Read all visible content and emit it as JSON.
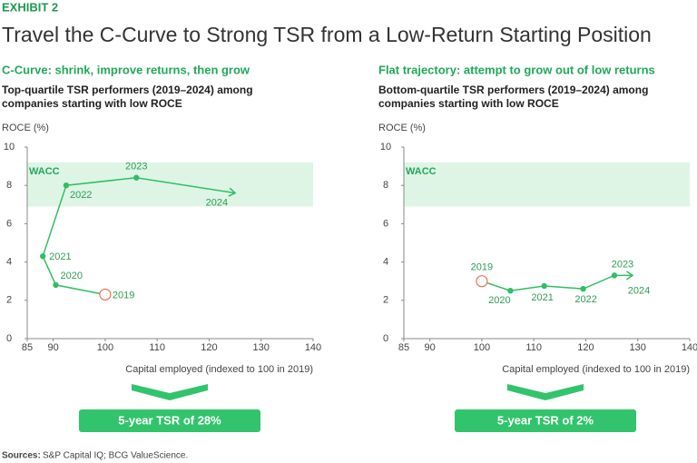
{
  "exhibit": "EXHIBIT 2",
  "title": "Travel the C-Curve to Strong TSR from a Low-Return Starting Position",
  "source_label": "Sources:",
  "source": "S&P Capital IQ; BCG ValueScience.",
  "chart_data": [
    {
      "type": "line",
      "subtitle": "C-Curve: shrink, improve returns, then grow",
      "description": [
        "Top-quartile TSR performers (2019–2024) among",
        "companies starting with low ROCE"
      ],
      "ylabel": "ROCE (%)",
      "xlabel": "Capital employed (indexed to 100 in 2019)",
      "xlim": [
        85,
        140
      ],
      "xticks": [
        85,
        90,
        100,
        110,
        120,
        130,
        140
      ],
      "ylim": [
        0,
        10
      ],
      "yticks": [
        0,
        2,
        4,
        6,
        8,
        10
      ],
      "band": {
        "label": "WACC",
        "range": [
          6.9,
          9.2
        ],
        "color": "#def5e5"
      },
      "series": [
        {
          "color": "#2fbf64",
          "x": [
            100,
            90.5,
            88,
            92.5,
            106,
            125
          ],
          "values": [
            2.3,
            2.8,
            4.3,
            8.0,
            8.4,
            7.6
          ],
          "labels": [
            "2019",
            "2020",
            "2021",
            "2022",
            "2023",
            "2024"
          ]
        }
      ],
      "callout": "5-year TSR of 28%"
    },
    {
      "type": "line",
      "subtitle": "Flat trajectory: attempt to grow out of low returns",
      "description": [
        "Bottom-quartile TSR performers (2019–2024) among",
        "companies starting with low ROCE"
      ],
      "ylabel": "ROCE (%)",
      "xlabel": "Capital employed (indexed to 100 in 2019)",
      "xlim": [
        85,
        140
      ],
      "xticks": [
        85,
        90,
        100,
        110,
        120,
        130,
        140
      ],
      "ylim": [
        0,
        10
      ],
      "yticks": [
        0,
        2,
        4,
        6,
        8,
        10
      ],
      "band": {
        "label": "WACC",
        "range": [
          6.9,
          9.2
        ],
        "color": "#def5e5"
      },
      "series": [
        {
          "color": "#2fbf64",
          "x": [
            100,
            105.5,
            112,
            119.5,
            125.5,
            129
          ],
          "values": [
            3.0,
            2.5,
            2.75,
            2.6,
            3.3,
            3.3
          ],
          "labels": [
            "2019",
            "2020",
            "2021",
            "2022",
            "2023",
            "2024"
          ]
        }
      ],
      "callout": "5-year TSR of 2%"
    }
  ]
}
